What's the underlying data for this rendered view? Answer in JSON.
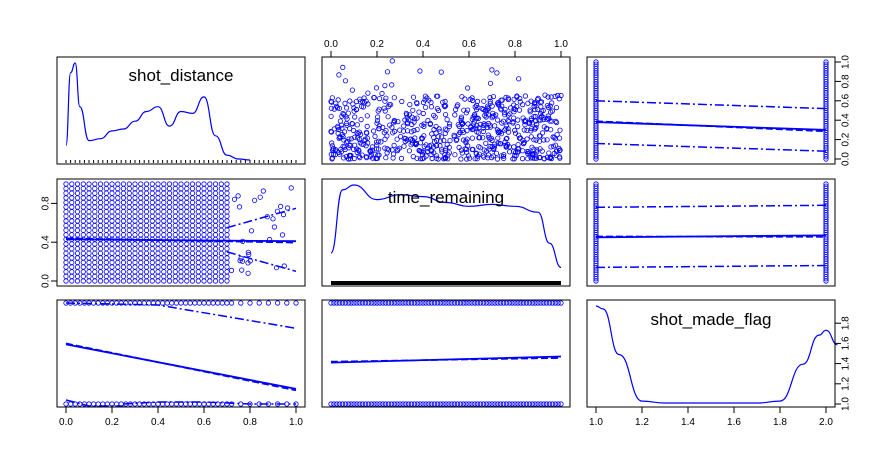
{
  "chart_data": {
    "type": "scatter",
    "variables": [
      "shot_distance",
      "time_remaining",
      "shot_made_flag"
    ],
    "axes": {
      "unit_ticks": [
        "0.0",
        "0.2",
        "0.4",
        "0.6",
        "0.8",
        "1.0"
      ],
      "right_ticks": [
        "0.0",
        "0.2",
        "0.4",
        "0.6",
        "0.8",
        "1.0"
      ],
      "left_ticks": [
        "0.0",
        "0.4",
        "0.8"
      ],
      "flag_x_ticks": [
        "1.0",
        "1.2",
        "1.4",
        "1.6",
        "1.8",
        "2.0"
      ],
      "flag_y_ticks": [
        "1.0",
        "1.2",
        "1.4",
        "1.6",
        "1.8"
      ]
    },
    "point_color": "#0000ff",
    "density_shot_distance": {
      "x": [
        0.0,
        0.02,
        0.04,
        0.06,
        0.1,
        0.15,
        0.2,
        0.25,
        0.3,
        0.35,
        0.4,
        0.45,
        0.5,
        0.55,
        0.6,
        0.65,
        0.7,
        0.75,
        0.8
      ],
      "y": [
        0.15,
        0.9,
        1.0,
        0.55,
        0.2,
        0.22,
        0.3,
        0.32,
        0.4,
        0.5,
        0.55,
        0.35,
        0.5,
        0.48,
        0.65,
        0.25,
        0.05,
        0.01,
        0.0
      ]
    },
    "density_time_remaining": {
      "x": [
        0.0,
        0.05,
        0.1,
        0.2,
        0.3,
        0.4,
        0.5,
        0.6,
        0.7,
        0.8,
        0.9,
        0.95,
        1.0
      ],
      "y": [
        0.3,
        0.95,
        1.0,
        0.85,
        0.9,
        0.88,
        0.82,
        0.78,
        0.8,
        0.78,
        0.72,
        0.4,
        0.15
      ]
    },
    "density_shot_made_flag": {
      "x": [
        1.0,
        1.03,
        1.1,
        1.2,
        1.3,
        1.5,
        1.7,
        1.8,
        1.9,
        1.97,
        2.0,
        2.05
      ],
      "y": [
        1.0,
        0.97,
        0.5,
        0.02,
        0.0,
        0.0,
        0.0,
        0.02,
        0.4,
        0.7,
        0.75,
        0.6
      ]
    },
    "fit_flag_vs_distance": {
      "x": [
        0.0,
        1.0
      ],
      "y": [
        1.59,
        1.15
      ]
    },
    "fit_flag_vs_time": {
      "x": [
        0.0,
        1.0
      ],
      "y": [
        1.41,
        1.47
      ]
    },
    "fit_time_vs_flag": {
      "x": [
        1.0,
        2.0
      ],
      "y": [
        0.45,
        0.47
      ]
    },
    "fit_distance_vs_flag": {
      "x": [
        1.0,
        2.0
      ],
      "y": [
        0.38,
        0.3
      ]
    },
    "fit_time_vs_distance": {
      "x": [
        0.0,
        1.0
      ],
      "y": [
        0.43,
        0.41
      ]
    }
  }
}
